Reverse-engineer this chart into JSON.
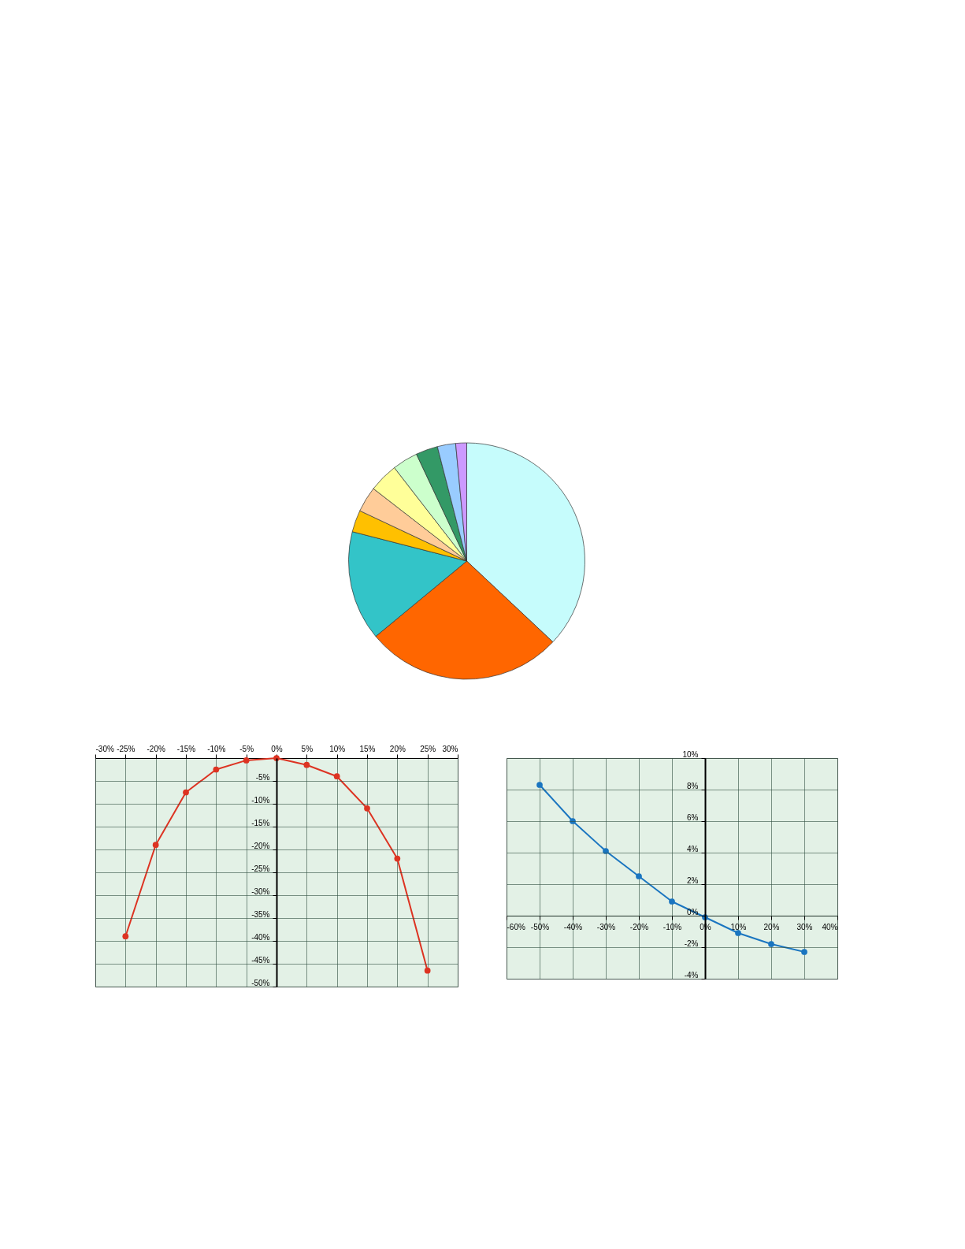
{
  "chart_data": [
    {
      "type": "pie",
      "categories": [
        null,
        null,
        null,
        null,
        null,
        null,
        null,
        null,
        null,
        null
      ],
      "values": [
        37,
        27,
        15,
        3,
        3.5,
        4,
        3.5,
        3,
        2.5,
        1.5
      ],
      "colors": [
        "#c6fcfc",
        "#ff6600",
        "#33c4c8",
        "#ffc000",
        "#ffcc99",
        "#ffff99",
        "#ccffcc",
        "#339966",
        "#99ccff",
        "#cc99ff"
      ],
      "legend": false
    },
    {
      "type": "line",
      "x": [
        -25,
        -20,
        -15,
        -10,
        -5,
        0,
        5,
        10,
        15,
        20,
        25
      ],
      "series": [
        {
          "color": "#dd3322",
          "values": [
            -39,
            -19,
            -7.5,
            -2.5,
            -0.5,
            0,
            -1.5,
            -4,
            -11,
            -22,
            -46.5
          ]
        }
      ],
      "xlim": [
        -30,
        30
      ],
      "ylim": [
        -50,
        0
      ],
      "xticks": [
        {
          "value": -30,
          "label": "-30%"
        },
        {
          "value": -25,
          "label": "-25%"
        },
        {
          "value": -20,
          "label": "-20%"
        },
        {
          "value": -15,
          "label": "-15%"
        },
        {
          "value": -10,
          "label": "-10%"
        },
        {
          "value": -5,
          "label": "-5%"
        },
        {
          "value": 0,
          "label": "0%"
        },
        {
          "value": 5,
          "label": "5%"
        },
        {
          "value": 10,
          "label": "10%"
        },
        {
          "value": 15,
          "label": "15%"
        },
        {
          "value": 20,
          "label": "20%"
        },
        {
          "value": 25,
          "label": "25%"
        },
        {
          "value": 30,
          "label": "30%"
        }
      ],
      "yticks": [
        {
          "value": -5,
          "label": "-5%"
        },
        {
          "value": -10,
          "label": "-10%"
        },
        {
          "value": -15,
          "label": "-15%"
        },
        {
          "value": -20,
          "label": "-20%"
        },
        {
          "value": -25,
          "label": "-25%"
        },
        {
          "value": -30,
          "label": "-30%"
        },
        {
          "value": -35,
          "label": "-35%"
        },
        {
          "value": -40,
          "label": "-40%"
        },
        {
          "value": -45,
          "label": "-45%"
        },
        {
          "value": -50,
          "label": "-50%"
        }
      ],
      "grid": true,
      "marker": "circle",
      "line_style": "solid"
    },
    {
      "type": "line",
      "x": [
        -50,
        -40,
        -30,
        -20,
        -10,
        0,
        10,
        20,
        30
      ],
      "series": [
        {
          "color": "#1a75c0",
          "values": [
            8.3,
            6,
            4.1,
            2.5,
            0.9,
            -0.1,
            -1.1,
            -1.8,
            -2.3
          ]
        }
      ],
      "xlim": [
        -60,
        40
      ],
      "ylim": [
        -4,
        10
      ],
      "xticks": [
        {
          "value": -60,
          "label": "-60%"
        },
        {
          "value": -50,
          "label": "-50%"
        },
        {
          "value": -40,
          "label": "-40%"
        },
        {
          "value": -30,
          "label": "-30%"
        },
        {
          "value": -20,
          "label": "-20%"
        },
        {
          "value": -10,
          "label": "-10%"
        },
        {
          "value": 0,
          "label": "0%"
        },
        {
          "value": 10,
          "label": "10%"
        },
        {
          "value": 20,
          "label": "20%"
        },
        {
          "value": 30,
          "label": "30%"
        },
        {
          "value": 40,
          "label": "40%"
        }
      ],
      "yticks": [
        {
          "value": -4,
          "label": "-4%"
        },
        {
          "value": -2,
          "label": "-2%"
        },
        {
          "value": 0,
          "label": "0%"
        },
        {
          "value": 2,
          "label": "2%"
        },
        {
          "value": 4,
          "label": "4%"
        },
        {
          "value": 6,
          "label": "6%"
        },
        {
          "value": 8,
          "label": "8%"
        },
        {
          "value": 10,
          "label": "10%"
        }
      ],
      "grid": true,
      "marker": "circle",
      "line_style": "solid"
    }
  ]
}
